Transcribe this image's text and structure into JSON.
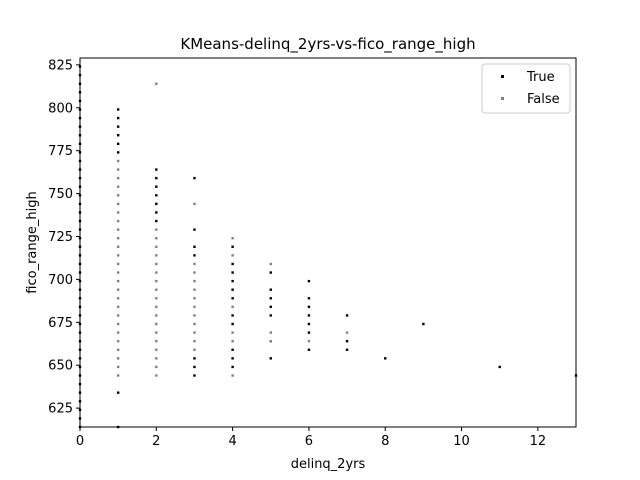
{
  "chart_data": {
    "type": "scatter",
    "title": "KMeans-delinq_2yrs-vs-fico_range_high",
    "xlabel": "delinq_2yrs",
    "ylabel": "fico_range_high",
    "xlim": [
      0,
      13
    ],
    "ylim": [
      614,
      829
    ],
    "x_ticks": [
      0,
      2,
      4,
      6,
      8,
      10,
      12
    ],
    "y_ticks": [
      625,
      650,
      675,
      700,
      725,
      750,
      775,
      800,
      825
    ],
    "grid": false,
    "legend_position": "top-right",
    "series": [
      {
        "name": "True",
        "color": "#000000",
        "points": [
          [
            0,
            614
          ],
          [
            0,
            619
          ],
          [
            0,
            624
          ],
          [
            0,
            629
          ],
          [
            0,
            634
          ],
          [
            0,
            639
          ],
          [
            0,
            644
          ],
          [
            0,
            649
          ],
          [
            0,
            654
          ],
          [
            0,
            659
          ],
          [
            0,
            664
          ],
          [
            0,
            669
          ],
          [
            0,
            674
          ],
          [
            0,
            679
          ],
          [
            0,
            684
          ],
          [
            0,
            689
          ],
          [
            0,
            694
          ],
          [
            0,
            699
          ],
          [
            0,
            704
          ],
          [
            0,
            709
          ],
          [
            0,
            714
          ],
          [
            0,
            719
          ],
          [
            0,
            724
          ],
          [
            0,
            729
          ],
          [
            0,
            734
          ],
          [
            0,
            739
          ],
          [
            0,
            744
          ],
          [
            0,
            749
          ],
          [
            0,
            754
          ],
          [
            0,
            759
          ],
          [
            0,
            764
          ],
          [
            0,
            769
          ],
          [
            0,
            774
          ],
          [
            0,
            779
          ],
          [
            0,
            784
          ],
          [
            0,
            789
          ],
          [
            0,
            794
          ],
          [
            0,
            799
          ],
          [
            0,
            804
          ],
          [
            0,
            809
          ],
          [
            0,
            814
          ],
          [
            0,
            819
          ],
          [
            0,
            824
          ],
          [
            1,
            614
          ],
          [
            1,
            634
          ],
          [
            1,
            774
          ],
          [
            1,
            779
          ],
          [
            1,
            784
          ],
          [
            1,
            789
          ],
          [
            1,
            794
          ],
          [
            1,
            799
          ],
          [
            2,
            734
          ],
          [
            2,
            739
          ],
          [
            2,
            744
          ],
          [
            2,
            749
          ],
          [
            2,
            754
          ],
          [
            2,
            759
          ],
          [
            2,
            764
          ],
          [
            3,
            644
          ],
          [
            3,
            649
          ],
          [
            3,
            654
          ],
          [
            3,
            714
          ],
          [
            3,
            719
          ],
          [
            3,
            729
          ],
          [
            3,
            759
          ],
          [
            4,
            649
          ],
          [
            4,
            654
          ],
          [
            4,
            659
          ],
          [
            4,
            674
          ],
          [
            4,
            679
          ],
          [
            4,
            689
          ],
          [
            4,
            694
          ],
          [
            4,
            699
          ],
          [
            4,
            704
          ],
          [
            4,
            709
          ],
          [
            4,
            719
          ],
          [
            5,
            654
          ],
          [
            5,
            664
          ],
          [
            5,
            679
          ],
          [
            5,
            684
          ],
          [
            5,
            689
          ],
          [
            5,
            694
          ],
          [
            5,
            704
          ],
          [
            6,
            659
          ],
          [
            6,
            669
          ],
          [
            6,
            674
          ],
          [
            6,
            679
          ],
          [
            6,
            684
          ],
          [
            6,
            689
          ],
          [
            6,
            699
          ],
          [
            7,
            659
          ],
          [
            7,
            664
          ],
          [
            7,
            679
          ],
          [
            8,
            654
          ],
          [
            9,
            674
          ],
          [
            11,
            649
          ],
          [
            13,
            644
          ]
        ]
      },
      {
        "name": "False",
        "color": "#808080",
        "points": [
          [
            1,
            644
          ],
          [
            1,
            649
          ],
          [
            1,
            654
          ],
          [
            1,
            659
          ],
          [
            1,
            664
          ],
          [
            1,
            669
          ],
          [
            1,
            674
          ],
          [
            1,
            679
          ],
          [
            1,
            684
          ],
          [
            1,
            689
          ],
          [
            1,
            694
          ],
          [
            1,
            699
          ],
          [
            1,
            704
          ],
          [
            1,
            709
          ],
          [
            1,
            714
          ],
          [
            1,
            719
          ],
          [
            1,
            724
          ],
          [
            1,
            729
          ],
          [
            1,
            734
          ],
          [
            1,
            739
          ],
          [
            1,
            744
          ],
          [
            1,
            749
          ],
          [
            1,
            754
          ],
          [
            1,
            759
          ],
          [
            1,
            764
          ],
          [
            1,
            769
          ],
          [
            2,
            644
          ],
          [
            2,
            649
          ],
          [
            2,
            654
          ],
          [
            2,
            659
          ],
          [
            2,
            664
          ],
          [
            2,
            669
          ],
          [
            2,
            674
          ],
          [
            2,
            679
          ],
          [
            2,
            684
          ],
          [
            2,
            689
          ],
          [
            2,
            694
          ],
          [
            2,
            699
          ],
          [
            2,
            704
          ],
          [
            2,
            709
          ],
          [
            2,
            714
          ],
          [
            2,
            719
          ],
          [
            2,
            724
          ],
          [
            2,
            729
          ],
          [
            2,
            814
          ],
          [
            3,
            659
          ],
          [
            3,
            664
          ],
          [
            3,
            669
          ],
          [
            3,
            674
          ],
          [
            3,
            679
          ],
          [
            3,
            684
          ],
          [
            3,
            689
          ],
          [
            3,
            694
          ],
          [
            3,
            699
          ],
          [
            3,
            704
          ],
          [
            3,
            709
          ],
          [
            3,
            744
          ],
          [
            4,
            644
          ],
          [
            4,
            664
          ],
          [
            4,
            669
          ],
          [
            4,
            684
          ],
          [
            4,
            714
          ],
          [
            4,
            724
          ],
          [
            5,
            664
          ],
          [
            5,
            669
          ],
          [
            5,
            709
          ],
          [
            6,
            664
          ],
          [
            7,
            669
          ]
        ]
      }
    ]
  }
}
